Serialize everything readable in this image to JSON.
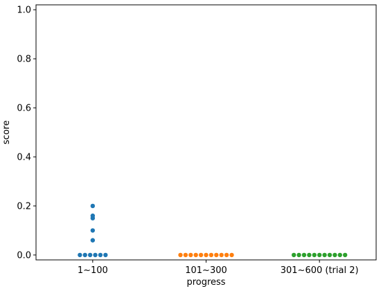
{
  "chart_data": {
    "type": "scatter",
    "xlabel": "progress",
    "ylabel": "score",
    "categories": [
      "1~100",
      "101~300",
      "301~600 (trial 2)"
    ],
    "ylim": [
      -0.02,
      1.02
    ],
    "yticks": [
      0.0,
      0.2,
      0.4,
      0.6,
      0.8,
      1.0
    ],
    "ytick_labels": [
      "0.0",
      "0.2",
      "0.4",
      "0.6",
      "0.8",
      "1.0"
    ],
    "grid": false,
    "series": [
      {
        "color": "#1f77b4",
        "values": [
          0.0,
          0.0,
          0.0,
          0.0,
          0.0,
          0.0,
          0.06,
          0.1,
          0.15,
          0.16,
          0.2
        ]
      },
      {
        "color": "#ff7f0e",
        "values": [
          0.0,
          0.0,
          0.0,
          0.0,
          0.0,
          0.0,
          0.0,
          0.0,
          0.0,
          0.0,
          0.0
        ]
      },
      {
        "color": "#2ca02c",
        "values": [
          0.0,
          0.0,
          0.0,
          0.0,
          0.0,
          0.0,
          0.0,
          0.0,
          0.0,
          0.0,
          0.0
        ]
      }
    ]
  }
}
